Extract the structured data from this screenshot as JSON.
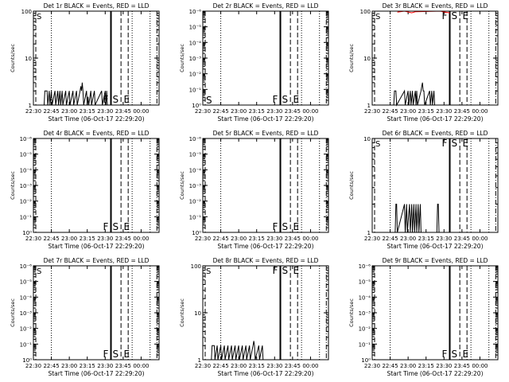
{
  "chart_data": [
    {
      "type": "line",
      "title": "Det 1r BLACK = Events, RED = LLD",
      "xlabel": "Start Time (06-Oct-17 22:29:20)",
      "ylabel": "Counts/sec",
      "xlim": [
        22.5,
        24.25
      ],
      "x_ticks": [
        "22:30",
        "22:45",
        "23:00",
        "23:15",
        "23:30",
        "23:45",
        "00:00"
      ],
      "y_scale": "log",
      "ylim": [
        1,
        100
      ],
      "y_ticks": [
        "1",
        "10",
        "100"
      ],
      "markers": [
        "S",
        "F",
        "S",
        "E"
      ],
      "series": [
        {
          "color": "#000000",
          "x": [
            22.5,
            22.65,
            22.66,
            22.69,
            22.7,
            22.72,
            22.73,
            22.75,
            22.76,
            22.8,
            22.81,
            22.84,
            22.85,
            22.87,
            22.88,
            22.9,
            22.91,
            22.95,
            22.96,
            23.0,
            23.01,
            23.05,
            23.06,
            23.1,
            23.11,
            23.15,
            23.16,
            23.17,
            23.18,
            23.19,
            23.2,
            23.24,
            23.25,
            23.26,
            23.27,
            23.3,
            23.31,
            23.35,
            23.36,
            23.45,
            23.46,
            23.5,
            23.51,
            23.52,
            23.53,
            24.25
          ],
          "y": [
            1,
            1,
            2,
            2,
            1,
            2,
            1,
            2,
            1,
            2,
            1,
            2,
            1,
            2,
            1,
            2,
            1,
            2,
            1,
            2,
            1,
            2,
            1,
            2,
            1,
            2,
            2.5,
            2,
            3,
            2,
            1,
            2,
            1,
            1.5,
            1,
            2,
            1,
            2,
            1,
            2,
            1,
            2,
            1,
            2,
            1,
            1
          ]
        }
      ]
    },
    {
      "type": "line",
      "title": "Det 2r BLACK = Events, RED = LLD",
      "xlabel": "Start Time (06-Oct-17 22:29:20)",
      "ylabel": "Counts/sec",
      "xlim": [
        22.5,
        24.25
      ],
      "x_ticks": [
        "22:30",
        "22:45",
        "23:00",
        "23:15",
        "23:30",
        "23:45",
        "00:00"
      ],
      "y_scale": "log",
      "ylim": [
        1,
        1000000
      ],
      "y_ticks": [
        "10⁰",
        "10⁻¹",
        "10⁻²",
        "10⁻³",
        "10⁻⁴",
        "10⁻⁵",
        "10⁻⁶"
      ],
      "markers": [
        "S",
        "F",
        "S",
        "E"
      ],
      "series": []
    },
    {
      "type": "line",
      "title": "Det 3r BLACK = Events, RED = LLD",
      "xlabel": "Start Time (06-Oct-17 22:29:20)",
      "ylabel": "Counts/sec",
      "xlim": [
        22.5,
        24.25
      ],
      "x_ticks": [
        "22:30",
        "22:45",
        "23:00",
        "23:15",
        "23:30",
        "23:45",
        "00:00"
      ],
      "y_scale": "log",
      "ylim": [
        1,
        100
      ],
      "y_ticks": [
        "1",
        "10",
        "100"
      ],
      "markers": [
        "S",
        "F",
        "S",
        "E"
      ],
      "series": [
        {
          "color": "#000000",
          "x": [
            22.5,
            22.8,
            22.81,
            22.83,
            22.84,
            22.95,
            22.96,
            23.0,
            23.01,
            23.03,
            23.04,
            23.06,
            23.07,
            23.1,
            23.11,
            23.12,
            23.13,
            23.18,
            23.19,
            23.2,
            23.21,
            23.22,
            23.23,
            23.3,
            23.31,
            23.33,
            23.34,
            23.36,
            23.37,
            24.25
          ],
          "y": [
            1,
            1,
            2,
            2,
            1,
            2,
            1,
            2,
            1,
            2,
            1,
            2,
            1,
            2,
            1,
            2,
            1,
            2,
            2.5,
            3,
            2,
            2,
            1,
            2,
            1,
            2,
            1,
            2,
            1,
            1
          ]
        },
        {
          "color": "#ff0000",
          "x": [
            22.85,
            22.95,
            23.05,
            23.1,
            23.45,
            23.5,
            23.58
          ],
          "y": [
            95,
            100,
            92,
            97,
            100,
            96,
            92
          ]
        }
      ]
    },
    {
      "type": "line",
      "title": "Det 4r BLACK = Events, RED = LLD",
      "xlabel": "Start Time (06-Oct-17 22:29:20)",
      "ylabel": "Counts/sec",
      "xlim": [
        22.5,
        24.25
      ],
      "x_ticks": [
        "22:30",
        "22:45",
        "23:00",
        "23:15",
        "23:30",
        "23:45",
        "00:00"
      ],
      "y_scale": "log",
      "ylim": [
        1,
        1000000
      ],
      "y_ticks": [
        "10⁰",
        "10⁻¹",
        "10⁻²",
        "10⁻³",
        "10⁻⁴",
        "10⁻⁵",
        "10⁻⁶"
      ],
      "markers": [
        "F",
        "S",
        "E"
      ],
      "series": []
    },
    {
      "type": "line",
      "title": "Det 5r BLACK = Events, RED = LLD",
      "xlabel": "Start Time (06-Oct-17 22:29:20)",
      "ylabel": "Counts/sec",
      "xlim": [
        22.5,
        24.25
      ],
      "x_ticks": [
        "22:30",
        "22:45",
        "23:00",
        "23:15",
        "23:30",
        "23:45",
        "00:00"
      ],
      "y_scale": "log",
      "ylim": [
        1,
        1000000
      ],
      "y_ticks": [
        "10⁰",
        "10⁻¹",
        "10⁻²",
        "10⁻³",
        "10⁻⁴",
        "10⁻⁵",
        "10⁻⁶"
      ],
      "markers": [
        "F",
        "S",
        "E"
      ],
      "series": []
    },
    {
      "type": "line",
      "title": "Det 6r BLACK = Events, RED = LLD",
      "xlabel": "Start Time (06-Oct-17 22:29:20)",
      "ylabel": "Counts/sec",
      "xlim": [
        22.5,
        24.25
      ],
      "x_ticks": [
        "22:30",
        "22:45",
        "23:00",
        "23:15",
        "23:30",
        "23:45",
        "00:00"
      ],
      "y_scale": "log",
      "ylim": [
        1,
        10
      ],
      "y_ticks": [
        "1",
        "10"
      ],
      "markers": [
        "S",
        "F",
        "S",
        "E"
      ],
      "series": [
        {
          "color": "#000000",
          "x": [
            22.5,
            22.82,
            22.83,
            22.84,
            22.85,
            22.95,
            22.96,
            22.98,
            22.99,
            23.02,
            23.03,
            23.05,
            23.06,
            23.08,
            23.09,
            23.11,
            23.12,
            23.14,
            23.15,
            23.17,
            23.18,
            23.4,
            23.41,
            23.42,
            23.43,
            24.25
          ],
          "y": [
            1,
            1,
            2,
            2,
            1,
            2,
            1,
            2,
            1,
            2,
            1,
            2,
            1,
            2,
            1,
            2,
            1,
            2,
            1,
            2,
            1,
            1,
            2,
            2,
            1,
            1
          ]
        }
      ]
    },
    {
      "type": "line",
      "title": "Det 7r BLACK = Events, RED = LLD",
      "xlabel": "Start Time (06-Oct-17 22:29:20)",
      "ylabel": "Counts/sec",
      "xlim": [
        22.5,
        24.25
      ],
      "x_ticks": [
        "22:30",
        "22:45",
        "23:00",
        "23:15",
        "23:30",
        "23:45",
        "00:00"
      ],
      "y_scale": "log",
      "ylim": [
        1,
        1000000
      ],
      "y_ticks": [
        "10⁰",
        "10⁻¹",
        "10⁻²",
        "10⁻³",
        "10⁻⁴",
        "10⁻⁵",
        "10⁻⁶"
      ],
      "markers": [
        "S",
        "F",
        "S",
        "E"
      ],
      "series": []
    },
    {
      "type": "line",
      "title": "Det 8r BLACK = Events, RED = LLD",
      "xlabel": "Start Time (06-Oct-17 22:29:20)",
      "ylabel": "Counts/sec",
      "xlim": [
        22.5,
        24.25
      ],
      "x_ticks": [
        "22:30",
        "22:45",
        "23:00",
        "23:15",
        "23:30",
        "23:45",
        "00:00"
      ],
      "y_scale": "log",
      "ylim": [
        1,
        100
      ],
      "y_ticks": [
        "1",
        "10",
        "100"
      ],
      "markers": [
        "S",
        "F",
        "S",
        "E"
      ],
      "series": [
        {
          "color": "#000000",
          "x": [
            22.5,
            22.62,
            22.63,
            22.66,
            22.67,
            22.7,
            22.71,
            22.75,
            22.76,
            22.8,
            22.81,
            22.85,
            22.86,
            22.9,
            22.91,
            22.95,
            22.96,
            23.0,
            23.01,
            23.05,
            23.06,
            23.1,
            23.11,
            23.15,
            23.16,
            23.2,
            23.21,
            23.22,
            23.23,
            23.28,
            23.29,
            23.33,
            23.34,
            24.25
          ],
          "y": [
            1,
            1,
            2,
            2,
            1,
            2,
            1,
            2,
            1,
            2,
            1,
            2,
            1,
            2,
            1,
            2,
            1,
            2,
            1,
            2,
            1,
            2,
            1,
            2,
            1,
            2,
            2.5,
            2,
            1,
            2,
            1,
            2,
            1,
            1
          ]
        }
      ]
    },
    {
      "type": "line",
      "title": "Det 9r BLACK = Events, RED = LLD",
      "xlabel": "Start Time (06-Oct-17 22:29:20)",
      "ylabel": "Counts/sec",
      "xlim": [
        22.5,
        24.25
      ],
      "x_ticks": [
        "22:30",
        "22:45",
        "23:00",
        "23:15",
        "23:30",
        "23:45",
        "00:00"
      ],
      "y_scale": "log",
      "ylim": [
        1,
        1000000
      ],
      "y_ticks": [
        "10⁰",
        "10⁻¹",
        "10⁻²",
        "10⁻³",
        "10⁻⁴",
        "10⁻⁵",
        "10⁻⁶"
      ],
      "markers": [
        "F",
        "S",
        "E"
      ],
      "series": []
    }
  ]
}
